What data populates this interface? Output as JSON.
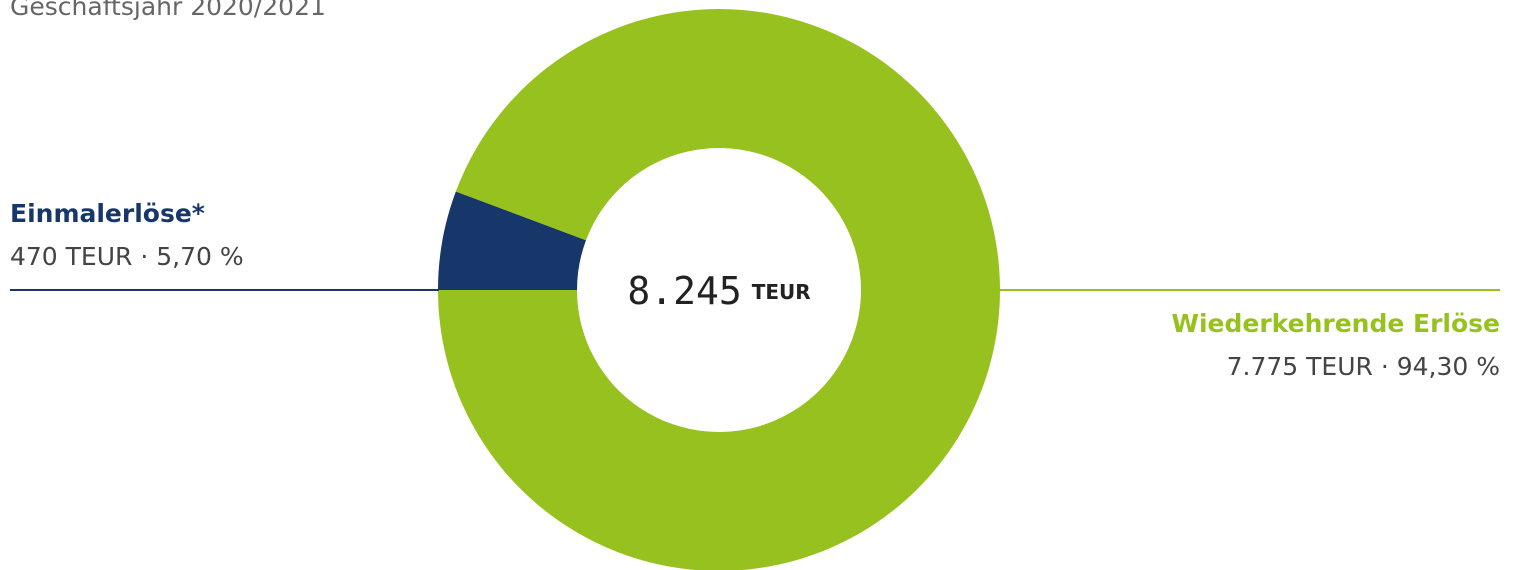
{
  "chart_data": {
    "type": "pie",
    "donut": true,
    "subtitle": "Geschäftsjahr 2020/2021",
    "center_label": "8.245",
    "center_unit": "TEUR",
    "categories": [
      "Einmalerlöse*",
      "Wiederkehrende Erlöse"
    ],
    "values": [
      470,
      7775
    ],
    "value_labels": [
      "470 TEUR · 5,70 %",
      "7.775 TEUR · 94,30 %"
    ],
    "colors": [
      "#17376b",
      "#97c11f"
    ]
  }
}
